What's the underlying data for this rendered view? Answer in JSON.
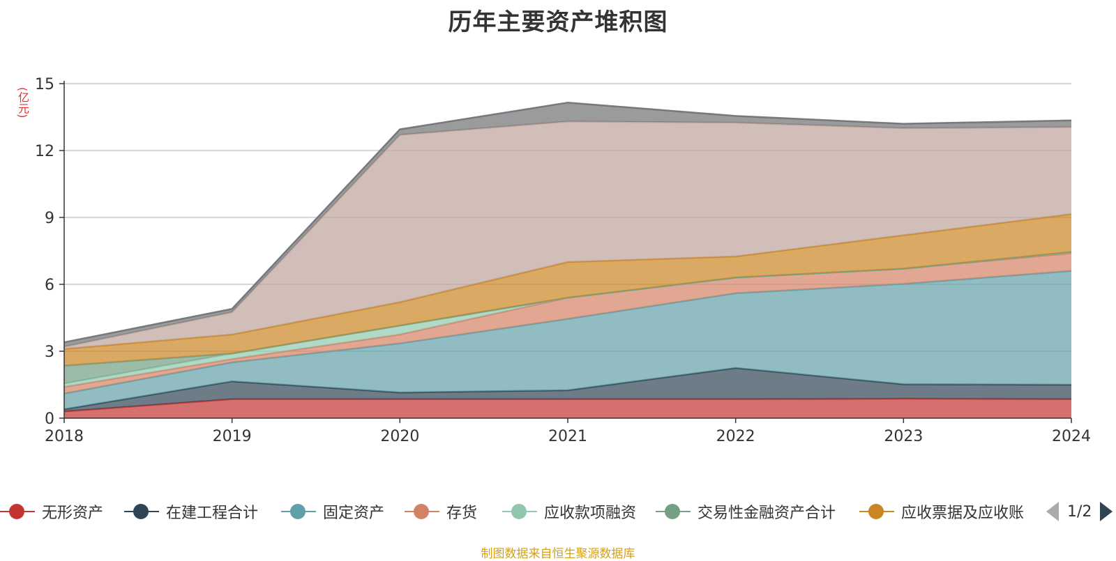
{
  "chart_data": {
    "type": "area",
    "title": "历年主要资产堆积图",
    "ylabel": "(亿元)",
    "x": [
      "2018",
      "2019",
      "2020",
      "2021",
      "2022",
      "2023",
      "2024"
    ],
    "ylim": [
      0,
      15
    ],
    "yticks": [
      0,
      3,
      6,
      9,
      12,
      15
    ],
    "grid": true,
    "legend_position": "bottom",
    "series": [
      {
        "name": "无形资产",
        "color": "#c23531",
        "values": [
          0.3,
          0.85,
          0.85,
          0.85,
          0.85,
          0.87,
          0.85
        ]
      },
      {
        "name": "在建工程合计",
        "color": "#2f4554",
        "values": [
          0.1,
          0.8,
          0.3,
          0.4,
          1.4,
          0.65,
          0.65
        ]
      },
      {
        "name": "固定资产",
        "color": "#61a0a8",
        "values": [
          0.7,
          0.85,
          2.2,
          3.2,
          3.35,
          4.5,
          5.1
        ]
      },
      {
        "name": "存货",
        "color": "#d48265",
        "values": [
          0.3,
          0.15,
          0.4,
          0.95,
          0.7,
          0.68,
          0.8
        ]
      },
      {
        "name": "应收款项融资",
        "color": "#91c7ae",
        "values": [
          0.15,
          0.25,
          0.4,
          0.0,
          0.0,
          0.0,
          0.05
        ]
      },
      {
        "name": "交易性金融资产合计",
        "color": "#749f83",
        "values": [
          0.8,
          0.0,
          0.0,
          0.0,
          0.0,
          0.0,
          0.0
        ]
      },
      {
        "name": "应收票据及应收账",
        "color": "#ca8622",
        "values": [
          0.75,
          0.85,
          1.05,
          1.6,
          0.95,
          1.5,
          1.7
        ]
      },
      {
        "name": "",
        "color": "#bda29a",
        "values": [
          0.1,
          1.0,
          7.5,
          6.3,
          6.0,
          4.8,
          3.9
        ]
      },
      {
        "name": "",
        "color": "#6e7074",
        "values": [
          0.2,
          0.15,
          0.25,
          0.85,
          0.3,
          0.2,
          0.3
        ]
      }
    ]
  },
  "legend_page": "1/2",
  "source": "制图数据来自恒生聚源数据库"
}
